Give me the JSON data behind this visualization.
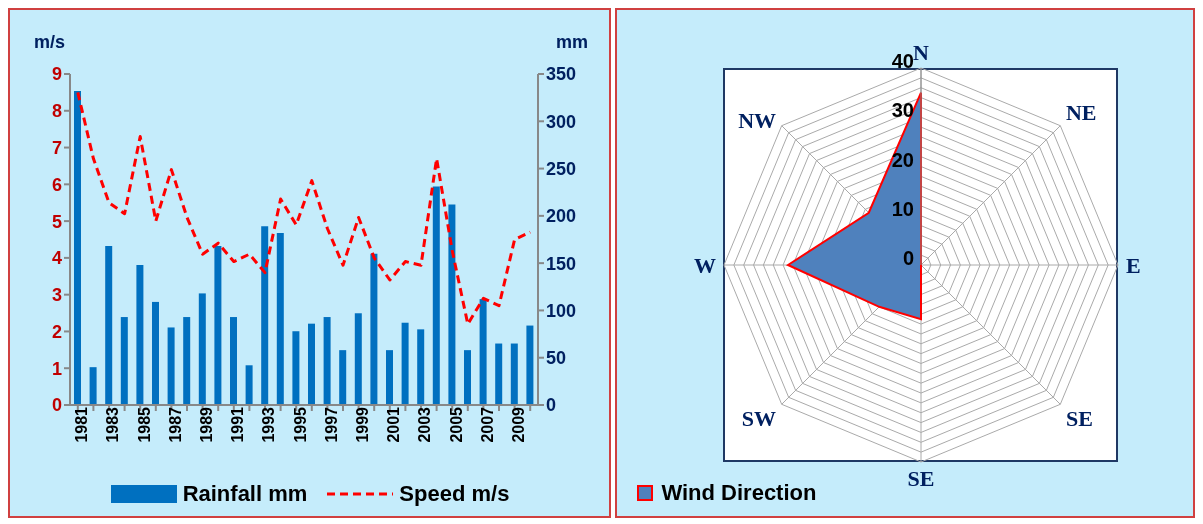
{
  "chart_data": [
    {
      "type": "bar",
      "categories": [
        "1981",
        null,
        "1983",
        null,
        "1985",
        null,
        "1987",
        null,
        "1989",
        null,
        "1991",
        null,
        "1993",
        null,
        "1995",
        null,
        "1997",
        null,
        "1999",
        null,
        "2001",
        null,
        "2003",
        null,
        "2005",
        null,
        "2007",
        null,
        "2009",
        null
      ],
      "ylabel": "m/s",
      "y2label": "mm",
      "ylim": [
        0,
        9
      ],
      "yticks": [
        0,
        1,
        2,
        3,
        4,
        5,
        6,
        7,
        8,
        9
      ],
      "y2lim": [
        0,
        350
      ],
      "y2ticks": [
        0,
        50,
        100,
        150,
        200,
        250,
        300,
        350
      ],
      "legend": "bottom",
      "grid": false,
      "series": [
        {
          "name": "Rainfall mm",
          "type": "bar",
          "axis": "y2",
          "color": "#0070c0",
          "values": [
            332,
            40,
            168,
            93,
            148,
            109,
            82,
            93,
            118,
            168,
            93,
            42,
            189,
            182,
            78,
            86,
            93,
            58,
            97,
            160,
            58,
            87,
            80,
            231,
            212,
            58,
            112,
            65,
            65,
            84
          ]
        },
        {
          "name": "Speed m/s",
          "type": "line",
          "axis": "y",
          "color": "#ff0000",
          "line_style": "dashed",
          "marker": "none",
          "values": [
            8.5,
            6.7,
            5.5,
            5.2,
            7.3,
            5.0,
            6.4,
            5.1,
            4.1,
            4.4,
            3.9,
            4.1,
            3.6,
            5.6,
            4.9,
            6.1,
            4.8,
            3.8,
            5.1,
            4.0,
            3.4,
            3.9,
            3.8,
            6.7,
            4.2,
            2.2,
            2.9,
            2.7,
            4.5,
            4.7
          ]
        }
      ]
    },
    {
      "type": "radar",
      "categories": [
        "N",
        "NE",
        "E",
        "SE",
        "SE",
        "SW",
        "W",
        "NW"
      ],
      "ylim": [
        0,
        40
      ],
      "yticks": [
        0,
        10,
        20,
        30,
        40
      ],
      "grid": true,
      "legend": "bottom left",
      "series": [
        {
          "name": "Wind Direction",
          "color": "#4f81bd",
          "values": [
            35,
            0,
            0,
            0,
            11,
            12,
            27,
            15
          ]
        }
      ]
    }
  ]
}
